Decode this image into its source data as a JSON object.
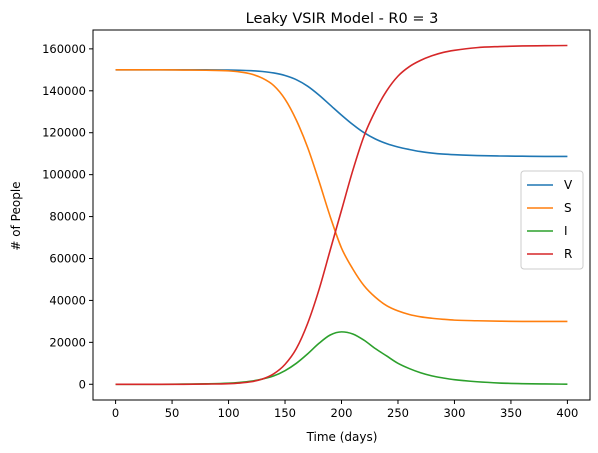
{
  "chart_data": {
    "type": "line",
    "title": "Leaky VSIR Model - R0 = 3",
    "xlabel": "Time (days)",
    "ylabel": "# of People",
    "xlim": [
      -20,
      420
    ],
    "ylim": [
      -7500,
      169000
    ],
    "xticks": [
      0,
      50,
      100,
      150,
      200,
      250,
      300,
      350,
      400
    ],
    "yticks": [
      0,
      20000,
      40000,
      60000,
      80000,
      100000,
      120000,
      140000,
      160000
    ],
    "grid": false,
    "legend_position": "center-right",
    "x": [
      0,
      20,
      40,
      60,
      80,
      100,
      110,
      120,
      130,
      140,
      150,
      160,
      170,
      180,
      190,
      200,
      210,
      220,
      230,
      240,
      250,
      260,
      270,
      280,
      290,
      300,
      320,
      340,
      360,
      380,
      400
    ],
    "series": [
      {
        "name": "V",
        "color": "#1f77b4",
        "values": [
          150000,
          150000,
          150000,
          150000,
          150000,
          149900,
          149800,
          149600,
          149200,
          148500,
          147300,
          145300,
          142200,
          138000,
          133200,
          128400,
          123900,
          120000,
          117000,
          114800,
          113200,
          112000,
          111000,
          110300,
          109800,
          109500,
          109100,
          108900,
          108800,
          108700,
          108700
        ]
      },
      {
        "name": "S",
        "color": "#ff7f0e",
        "values": [
          150000,
          150000,
          150000,
          149900,
          149800,
          149500,
          149000,
          148000,
          146000,
          142500,
          136000,
          126000,
          113000,
          97000,
          80000,
          65000,
          55000,
          47000,
          41500,
          37500,
          35000,
          33300,
          32200,
          31500,
          31000,
          30600,
          30300,
          30100,
          30000,
          30000,
          30000
        ]
      },
      {
        "name": "I",
        "color": "#2ca02c",
        "values": [
          0,
          0,
          0,
          100,
          200,
          500,
          900,
          1500,
          2500,
          4000,
          6500,
          10000,
          14500,
          19500,
          23500,
          25000,
          24000,
          21000,
          17000,
          13500,
          10000,
          7500,
          5500,
          4000,
          3000,
          2200,
          1200,
          600,
          300,
          150,
          50
        ]
      },
      {
        "name": "R",
        "color": "#d62728",
        "values": [
          0,
          0,
          0,
          0,
          100,
          300,
          600,
          1200,
          2500,
          5000,
          9500,
          17000,
          29000,
          45000,
          64000,
          83000,
          102000,
          118500,
          130500,
          140000,
          147000,
          151500,
          154500,
          156700,
          158300,
          159300,
          160600,
          161100,
          161400,
          161500,
          161600
        ]
      }
    ]
  }
}
